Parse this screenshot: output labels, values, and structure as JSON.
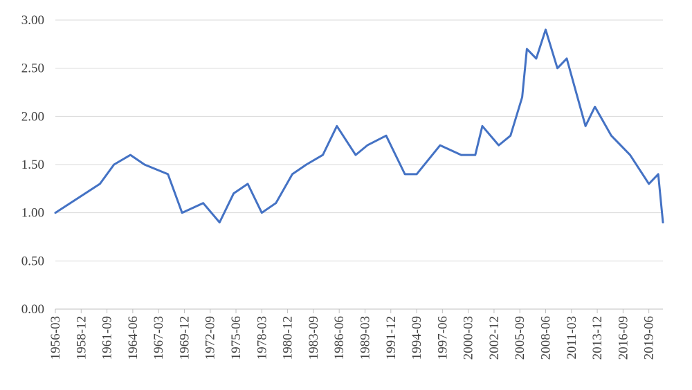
{
  "chart_data": {
    "type": "line",
    "title": "",
    "xlabel": "",
    "ylabel": "",
    "ylim": [
      0,
      3
    ],
    "y_ticks": [
      "0.00",
      "0.50",
      "1.00",
      "1.50",
      "2.00",
      "2.50",
      "3.00"
    ],
    "grid": "horizontal",
    "legend": "none",
    "x_start": "1956-03",
    "x_step_months": 3,
    "x_end": "2020-12",
    "x_ticks": [
      "1956-03",
      "1958-12",
      "1961-09",
      "1964-06",
      "1967-03",
      "1969-12",
      "1972-09",
      "1975-06",
      "1978-03",
      "1980-12",
      "1983-09",
      "1986-06",
      "1989-03",
      "1991-12",
      "1994-09",
      "1997-06",
      "2000-03",
      "2002-12",
      "2005-09",
      "2008-06",
      "2011-03",
      "2013-12",
      "2016-09",
      "2019-06"
    ],
    "series": [
      {
        "color": "#4472c4",
        "x": [
          "1956-03",
          "1960-12",
          "1962-06",
          "1964-03",
          "1965-09",
          "1968-03",
          "1969-09",
          "1971-12",
          "1973-09",
          "1975-03",
          "1976-09",
          "1978-03",
          "1979-09",
          "1981-06",
          "1982-12",
          "1984-09",
          "1986-03",
          "1988-03",
          "1989-06",
          "1991-06",
          "1993-06",
          "1994-09",
          "1997-03",
          "1999-06",
          "2000-12",
          "2001-09",
          "2003-06",
          "2004-09",
          "2005-12",
          "2006-06",
          "2007-06",
          "2008-06",
          "2009-09",
          "2010-09",
          "2012-09",
          "2013-09",
          "2015-06",
          "2017-06",
          "2019-06",
          "2020-06",
          "2020-12"
        ],
        "values": [
          1.0,
          1.3,
          1.5,
          1.6,
          1.5,
          1.4,
          1.0,
          1.1,
          0.9,
          1.2,
          1.3,
          1.0,
          1.1,
          1.4,
          1.5,
          1.6,
          1.9,
          1.6,
          1.7,
          1.8,
          1.4,
          1.4,
          1.7,
          1.6,
          1.6,
          1.9,
          1.7,
          1.8,
          2.2,
          2.7,
          2.6,
          2.9,
          2.5,
          2.6,
          1.9,
          2.1,
          1.8,
          1.6,
          1.3,
          1.4,
          0.9
        ]
      }
    ]
  }
}
